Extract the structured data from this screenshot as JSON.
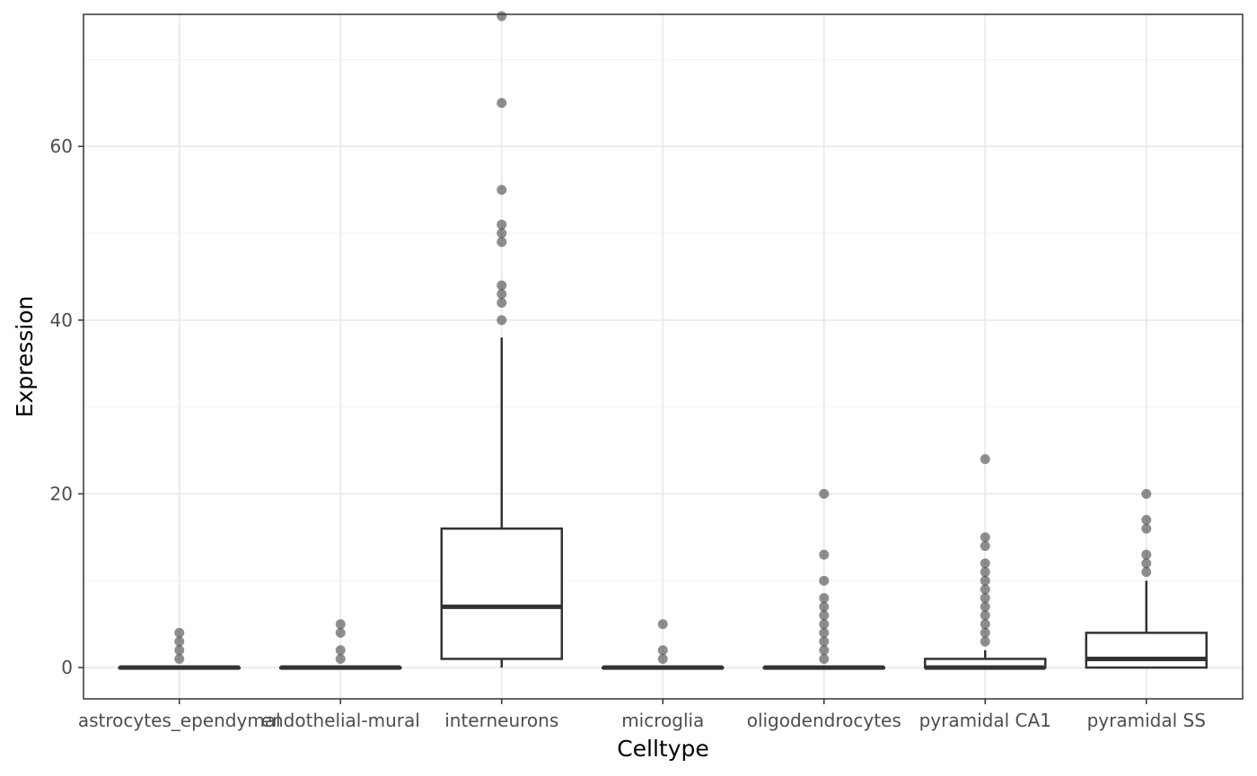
{
  "chart_data": {
    "type": "boxplot",
    "xlabel": "Celltype",
    "ylabel": "Expression",
    "ylim": [
      -3.6,
      75.2
    ],
    "yticks": [
      0,
      20,
      40,
      60
    ],
    "y_minor_ticks": [
      10,
      30,
      50,
      70
    ],
    "grid": true,
    "colors": {
      "panel_border": "#333333",
      "grid_major": "#ebebeb",
      "grid_minor": "#f2f2f2",
      "box_stroke": "#333333",
      "outlier": "#333333",
      "tick_label": "#4d4d4d"
    },
    "categories": [
      "astrocytes_ependymal",
      "endothelial-mural",
      "interneurons",
      "microglia",
      "oligodendrocytes",
      "pyramidal CA1",
      "pyramidal SS"
    ],
    "boxes": [
      {
        "category": "astrocytes_ependymal",
        "lower_whisker": 0,
        "q1": 0,
        "median": 0,
        "q3": 0,
        "upper_whisker": 0,
        "outliers": [
          1,
          2,
          3,
          4
        ]
      },
      {
        "category": "endothelial-mural",
        "lower_whisker": 0,
        "q1": 0,
        "median": 0,
        "q3": 0,
        "upper_whisker": 0,
        "outliers": [
          1,
          2,
          4,
          5
        ]
      },
      {
        "category": "interneurons",
        "lower_whisker": 0,
        "q1": 1,
        "median": 7,
        "q3": 16,
        "upper_whisker": 38,
        "outliers": [
          40,
          42,
          43,
          44,
          49,
          50,
          51,
          55,
          65,
          75
        ]
      },
      {
        "category": "microglia",
        "lower_whisker": 0,
        "q1": 0,
        "median": 0,
        "q3": 0,
        "upper_whisker": 0,
        "outliers": [
          1,
          2,
          5
        ]
      },
      {
        "category": "oligodendrocytes",
        "lower_whisker": 0,
        "q1": 0,
        "median": 0,
        "q3": 0,
        "upper_whisker": 0,
        "outliers": [
          1,
          2,
          3,
          4,
          5,
          6,
          7,
          8,
          10,
          13,
          20
        ]
      },
      {
        "category": "pyramidal CA1",
        "lower_whisker": 0,
        "q1": 0,
        "median": 0,
        "q3": 1,
        "upper_whisker": 2,
        "outliers": [
          3,
          4,
          5,
          6,
          7,
          8,
          9,
          10,
          11,
          12,
          14,
          15,
          24
        ]
      },
      {
        "category": "pyramidal SS",
        "lower_whisker": 0,
        "q1": 0,
        "median": 1,
        "q3": 4,
        "upper_whisker": 10,
        "outliers": [
          11,
          12,
          13,
          16,
          17,
          20
        ]
      }
    ]
  }
}
